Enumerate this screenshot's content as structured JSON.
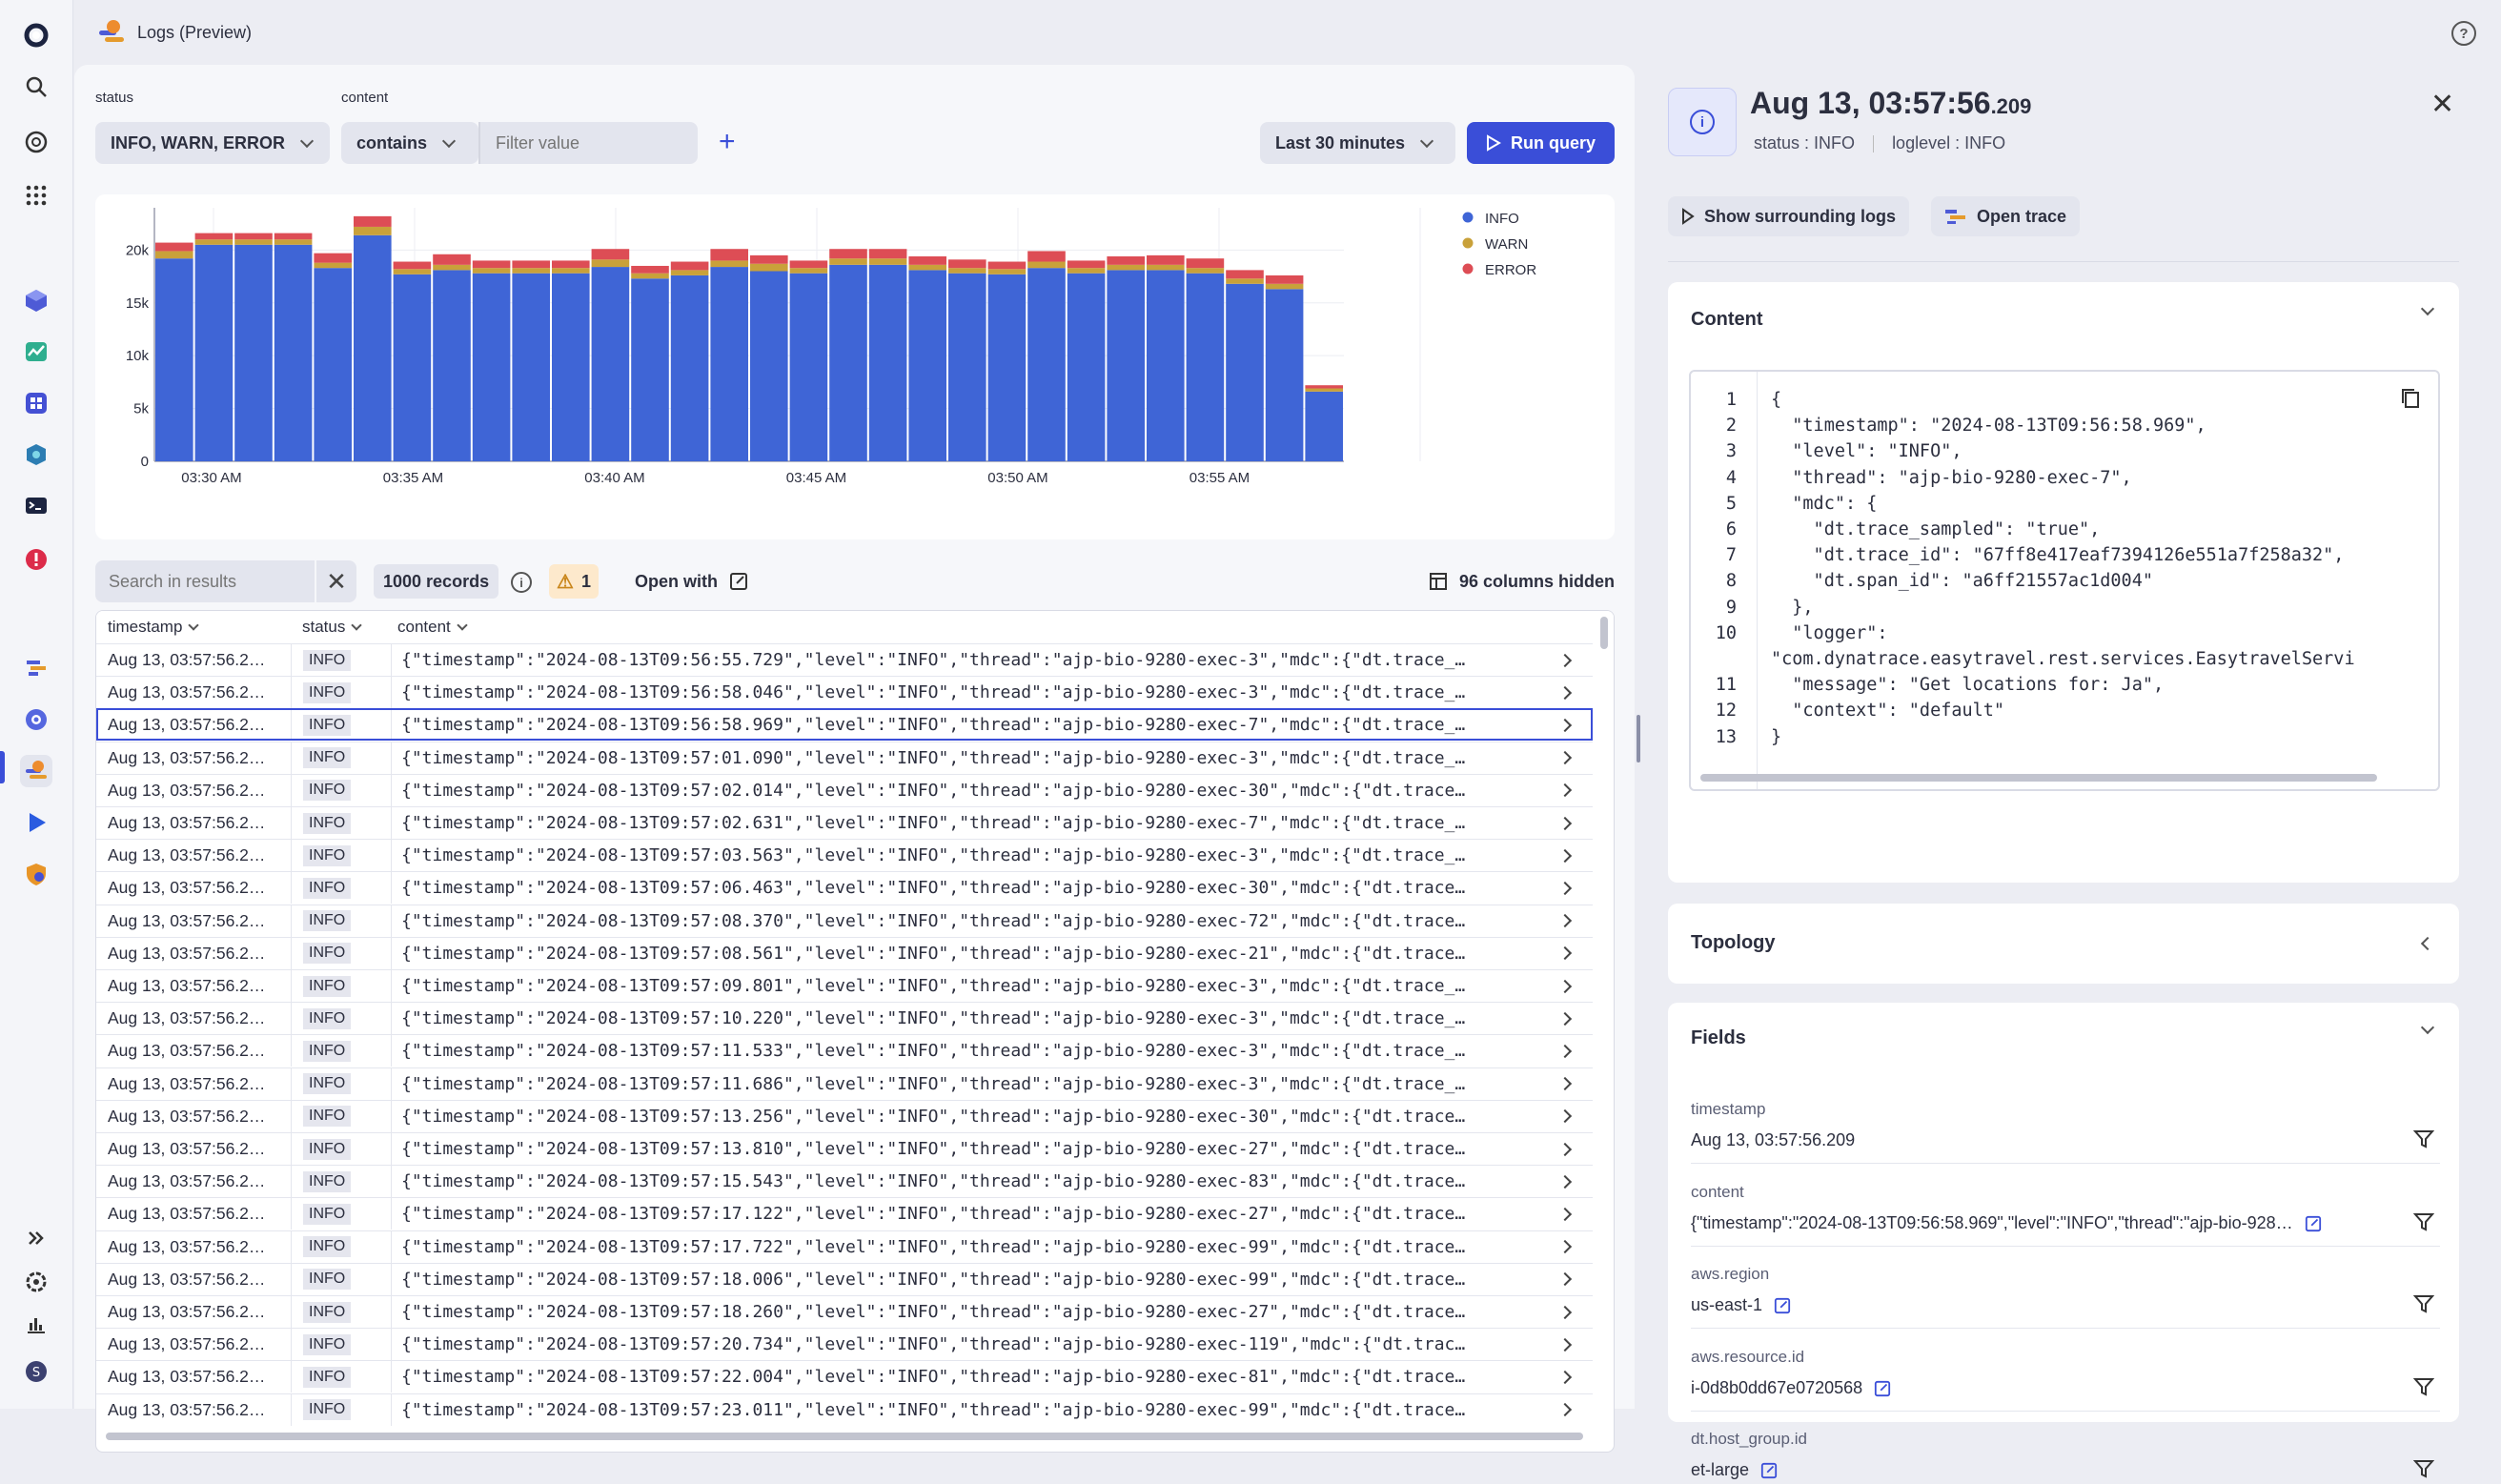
{
  "app": {
    "title": "Logs (Preview)"
  },
  "filters": {
    "status_label": "status",
    "status_value": "INFO, WARN, ERROR",
    "content_label": "content",
    "operator": "contains",
    "placeholder": "Filter value",
    "timeframe": "Last 30 minutes",
    "run_label": "Run query"
  },
  "chart_data": {
    "type": "bar",
    "stacked": true,
    "x_ticks": [
      "03:30 AM",
      "03:35 AM",
      "03:40 AM",
      "03:45 AM",
      "03:50 AM",
      "03:55 AM"
    ],
    "y_ticks": [
      "20k",
      "15k",
      "10k",
      "5k",
      "0"
    ],
    "ylim": [
      0,
      24000
    ],
    "legend": [
      "INFO",
      "WARN",
      "ERROR"
    ],
    "legend_position": "right",
    "colors": {
      "INFO": "#3f65d6",
      "WARN": "#c9a13a",
      "ERROR": "#dd4d55"
    },
    "series": [
      {
        "name": "INFO",
        "values": [
          19200,
          20500,
          20500,
          20500,
          18300,
          21400,
          17700,
          18100,
          17800,
          17800,
          17800,
          18400,
          17300,
          17600,
          18400,
          18000,
          17800,
          18600,
          18600,
          18100,
          17800,
          17700,
          18300,
          17800,
          18100,
          18100,
          17800,
          16800,
          16300,
          6600
        ]
      },
      {
        "name": "WARN",
        "values": [
          700,
          500,
          500,
          500,
          500,
          800,
          500,
          500,
          500,
          500,
          500,
          700,
          500,
          500,
          600,
          700,
          500,
          600,
          600,
          500,
          500,
          500,
          600,
          500,
          500,
          500,
          500,
          500,
          500,
          300
        ]
      },
      {
        "name": "ERROR",
        "values": [
          800,
          600,
          600,
          600,
          900,
          1000,
          700,
          1000,
          700,
          700,
          700,
          1000,
          700,
          800,
          1100,
          800,
          700,
          900,
          900,
          800,
          800,
          700,
          1000,
          700,
          800,
          900,
          900,
          800,
          800,
          300
        ]
      }
    ]
  },
  "toolbar": {
    "search_placeholder": "Search in results",
    "records": "1000 records",
    "warning_count": "1",
    "open_with": "Open with",
    "columns_hidden": "96 columns hidden"
  },
  "table": {
    "headers": [
      "timestamp",
      "status",
      "content"
    ],
    "rows": [
      {
        "ts": "Aug 13, 03:57:56.2…",
        "status": "INFO",
        "content": "{\"timestamp\":\"2024-08-13T09:56:55.729\",\"level\":\"INFO\",\"thread\":\"ajp-bio-9280-exec-3\",\"mdc\":{\"dt.trace_…"
      },
      {
        "ts": "Aug 13, 03:57:56.2…",
        "status": "INFO",
        "content": "{\"timestamp\":\"2024-08-13T09:56:58.046\",\"level\":\"INFO\",\"thread\":\"ajp-bio-9280-exec-3\",\"mdc\":{\"dt.trace_…"
      },
      {
        "ts": "Aug 13, 03:57:56.2…",
        "status": "INFO",
        "content": "{\"timestamp\":\"2024-08-13T09:56:58.969\",\"level\":\"INFO\",\"thread\":\"ajp-bio-9280-exec-7\",\"mdc\":{\"dt.trace_…"
      },
      {
        "ts": "Aug 13, 03:57:56.2…",
        "status": "INFO",
        "content": "{\"timestamp\":\"2024-08-13T09:57:01.090\",\"level\":\"INFO\",\"thread\":\"ajp-bio-9280-exec-3\",\"mdc\":{\"dt.trace_…"
      },
      {
        "ts": "Aug 13, 03:57:56.2…",
        "status": "INFO",
        "content": "{\"timestamp\":\"2024-08-13T09:57:02.014\",\"level\":\"INFO\",\"thread\":\"ajp-bio-9280-exec-30\",\"mdc\":{\"dt.trace…"
      },
      {
        "ts": "Aug 13, 03:57:56.2…",
        "status": "INFO",
        "content": "{\"timestamp\":\"2024-08-13T09:57:02.631\",\"level\":\"INFO\",\"thread\":\"ajp-bio-9280-exec-7\",\"mdc\":{\"dt.trace_…"
      },
      {
        "ts": "Aug 13, 03:57:56.2…",
        "status": "INFO",
        "content": "{\"timestamp\":\"2024-08-13T09:57:03.563\",\"level\":\"INFO\",\"thread\":\"ajp-bio-9280-exec-3\",\"mdc\":{\"dt.trace_…"
      },
      {
        "ts": "Aug 13, 03:57:56.2…",
        "status": "INFO",
        "content": "{\"timestamp\":\"2024-08-13T09:57:06.463\",\"level\":\"INFO\",\"thread\":\"ajp-bio-9280-exec-30\",\"mdc\":{\"dt.trace…"
      },
      {
        "ts": "Aug 13, 03:57:56.2…",
        "status": "INFO",
        "content": "{\"timestamp\":\"2024-08-13T09:57:08.370\",\"level\":\"INFO\",\"thread\":\"ajp-bio-9280-exec-72\",\"mdc\":{\"dt.trace…"
      },
      {
        "ts": "Aug 13, 03:57:56.2…",
        "status": "INFO",
        "content": "{\"timestamp\":\"2024-08-13T09:57:08.561\",\"level\":\"INFO\",\"thread\":\"ajp-bio-9280-exec-21\",\"mdc\":{\"dt.trace…"
      },
      {
        "ts": "Aug 13, 03:57:56.2…",
        "status": "INFO",
        "content": "{\"timestamp\":\"2024-08-13T09:57:09.801\",\"level\":\"INFO\",\"thread\":\"ajp-bio-9280-exec-3\",\"mdc\":{\"dt.trace_…"
      },
      {
        "ts": "Aug 13, 03:57:56.2…",
        "status": "INFO",
        "content": "{\"timestamp\":\"2024-08-13T09:57:10.220\",\"level\":\"INFO\",\"thread\":\"ajp-bio-9280-exec-3\",\"mdc\":{\"dt.trace_…"
      },
      {
        "ts": "Aug 13, 03:57:56.2…",
        "status": "INFO",
        "content": "{\"timestamp\":\"2024-08-13T09:57:11.533\",\"level\":\"INFO\",\"thread\":\"ajp-bio-9280-exec-3\",\"mdc\":{\"dt.trace_…"
      },
      {
        "ts": "Aug 13, 03:57:56.2…",
        "status": "INFO",
        "content": "{\"timestamp\":\"2024-08-13T09:57:11.686\",\"level\":\"INFO\",\"thread\":\"ajp-bio-9280-exec-3\",\"mdc\":{\"dt.trace_…"
      },
      {
        "ts": "Aug 13, 03:57:56.2…",
        "status": "INFO",
        "content": "{\"timestamp\":\"2024-08-13T09:57:13.256\",\"level\":\"INFO\",\"thread\":\"ajp-bio-9280-exec-30\",\"mdc\":{\"dt.trace…"
      },
      {
        "ts": "Aug 13, 03:57:56.2…",
        "status": "INFO",
        "content": "{\"timestamp\":\"2024-08-13T09:57:13.810\",\"level\":\"INFO\",\"thread\":\"ajp-bio-9280-exec-27\",\"mdc\":{\"dt.trace…"
      },
      {
        "ts": "Aug 13, 03:57:56.2…",
        "status": "INFO",
        "content": "{\"timestamp\":\"2024-08-13T09:57:15.543\",\"level\":\"INFO\",\"thread\":\"ajp-bio-9280-exec-83\",\"mdc\":{\"dt.trace…"
      },
      {
        "ts": "Aug 13, 03:57:56.2…",
        "status": "INFO",
        "content": "{\"timestamp\":\"2024-08-13T09:57:17.122\",\"level\":\"INFO\",\"thread\":\"ajp-bio-9280-exec-27\",\"mdc\":{\"dt.trace…"
      },
      {
        "ts": "Aug 13, 03:57:56.2…",
        "status": "INFO",
        "content": "{\"timestamp\":\"2024-08-13T09:57:17.722\",\"level\":\"INFO\",\"thread\":\"ajp-bio-9280-exec-99\",\"mdc\":{\"dt.trace…"
      },
      {
        "ts": "Aug 13, 03:57:56.2…",
        "status": "INFO",
        "content": "{\"timestamp\":\"2024-08-13T09:57:18.006\",\"level\":\"INFO\",\"thread\":\"ajp-bio-9280-exec-99\",\"mdc\":{\"dt.trace…"
      },
      {
        "ts": "Aug 13, 03:57:56.2…",
        "status": "INFO",
        "content": "{\"timestamp\":\"2024-08-13T09:57:18.260\",\"level\":\"INFO\",\"thread\":\"ajp-bio-9280-exec-27\",\"mdc\":{\"dt.trace…"
      },
      {
        "ts": "Aug 13, 03:57:56.2…",
        "status": "INFO",
        "content": "{\"timestamp\":\"2024-08-13T09:57:20.734\",\"level\":\"INFO\",\"thread\":\"ajp-bio-9280-exec-119\",\"mdc\":{\"dt.trac…"
      },
      {
        "ts": "Aug 13, 03:57:56.2…",
        "status": "INFO",
        "content": "{\"timestamp\":\"2024-08-13T09:57:22.004\",\"level\":\"INFO\",\"thread\":\"ajp-bio-9280-exec-81\",\"mdc\":{\"dt.trace…"
      },
      {
        "ts": "Aug 13, 03:57:56.2…",
        "status": "INFO",
        "content": "{\"timestamp\":\"2024-08-13T09:57:23.011\",\"level\":\"INFO\",\"thread\":\"ajp-bio-9280-exec-99\",\"mdc\":{\"dt.trace…"
      }
    ]
  },
  "detail": {
    "title_main": "Aug 13, 03:57:56",
    "title_ms": ".209",
    "status_meta": "status : INFO",
    "loglevel_meta": "loglevel : INFO",
    "surrounding_label": "Show surrounding logs",
    "trace_label": "Open trace",
    "content_title": "Content",
    "code_lines": [
      {
        "n": "1",
        "t": "{"
      },
      {
        "n": "2",
        "t": "  \"timestamp\": \"2024-08-13T09:56:58.969\","
      },
      {
        "n": "3",
        "t": "  \"level\": \"INFO\","
      },
      {
        "n": "4",
        "t": "  \"thread\": \"ajp-bio-9280-exec-7\","
      },
      {
        "n": "5",
        "t": "  \"mdc\": {"
      },
      {
        "n": "6",
        "t": "    \"dt.trace_sampled\": \"true\","
      },
      {
        "n": "7",
        "t": "    \"dt.trace_id\": \"67ff8e417eaf7394126e551a7f258a32\","
      },
      {
        "n": "8",
        "t": "    \"dt.span_id\": \"a6ff21557ac1d004\""
      },
      {
        "n": "9",
        "t": "  },"
      },
      {
        "n": "10",
        "t": "  \"logger\":"
      },
      {
        "n": "",
        "t": "\"com.dynatrace.easytravel.rest.services.EasytravelServi"
      },
      {
        "n": "11",
        "t": "  \"message\": \"Get locations for: Ja\","
      },
      {
        "n": "12",
        "t": "  \"context\": \"default\""
      },
      {
        "n": "13",
        "t": "}"
      }
    ],
    "topology_title": "Topology",
    "fields_title": "Fields",
    "fields": [
      {
        "name": "timestamp",
        "value": "Aug 13, 03:57:56.209"
      },
      {
        "name": "content",
        "value": "{\"timestamp\":\"2024-08-13T09:56:58.969\",\"level\":\"INFO\",\"thread\":\"ajp-bio-928…"
      },
      {
        "name": "aws.region",
        "value": "us-east-1"
      },
      {
        "name": "aws.resource.id",
        "value": "i-0d8b0dd67e0720568"
      },
      {
        "name": "dt.host_group.id",
        "value": "et-large"
      }
    ]
  }
}
